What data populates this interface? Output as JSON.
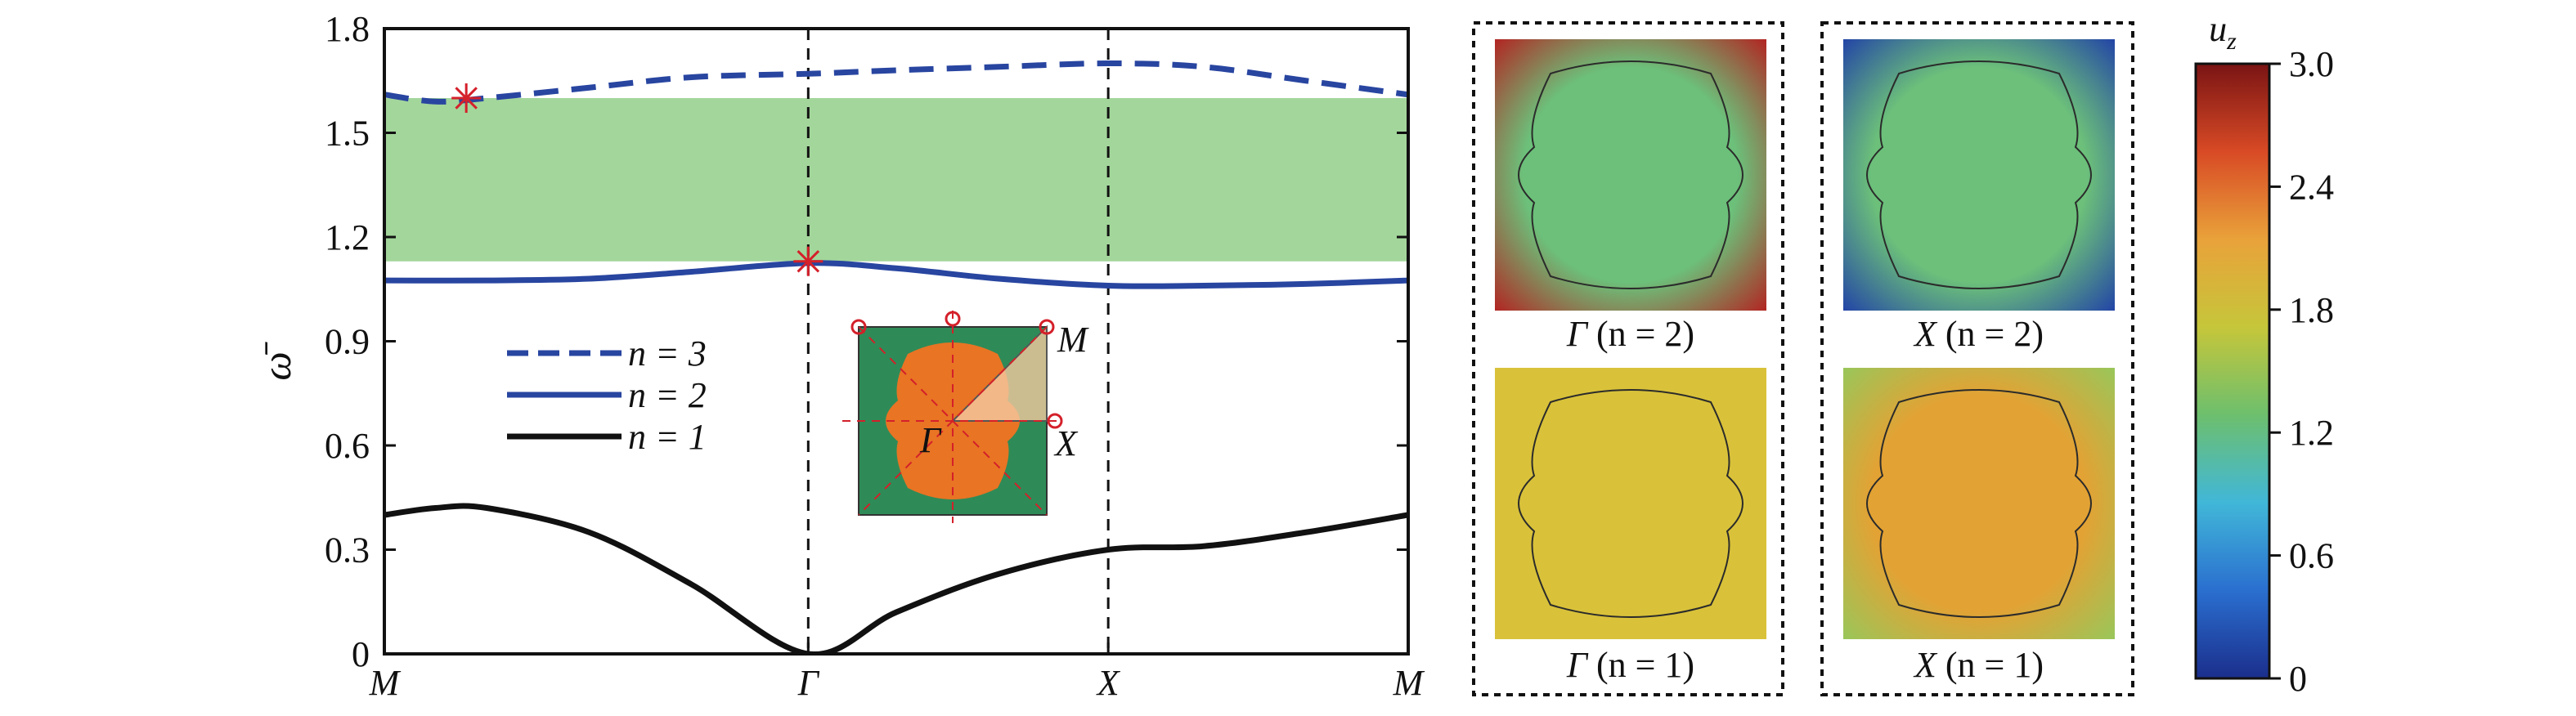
{
  "chart_data": [
    {
      "type": "line",
      "title": "",
      "xlabel": "",
      "ylabel": "ω̄",
      "x_ticks": [
        "M",
        "Γ",
        "X",
        "M"
      ],
      "x_range": [
        0,
        1
      ],
      "x_tick_positions": [
        0,
        0.414,
        0.707,
        1.0
      ],
      "ylim": [
        0,
        1.8
      ],
      "y_ticks": [
        "0",
        "0.3",
        "0.6",
        "0.9",
        "1.2",
        "1.5",
        "1.8"
      ],
      "y_tick_values": [
        0,
        0.3,
        0.6,
        0.9,
        1.2,
        1.5,
        1.8
      ],
      "grid": false,
      "legend_position": "left-middle",
      "band_gap": {
        "from": 1.13,
        "to": 1.6,
        "color": "#a3d69b"
      },
      "series": [
        {
          "name": "n = 3",
          "style": "dashed",
          "color": "#2845a0",
          "x": [
            0,
            0.05,
            0.1,
            0.2,
            0.3,
            0.414,
            0.5,
            0.6,
            0.707,
            0.8,
            0.9,
            1.0
          ],
          "y": [
            1.61,
            1.59,
            1.6,
            1.63,
            1.66,
            1.67,
            1.68,
            1.69,
            1.7,
            1.69,
            1.65,
            1.61
          ]
        },
        {
          "name": "n = 2",
          "style": "solid",
          "color": "#2845a0",
          "x": [
            0,
            0.1,
            0.2,
            0.3,
            0.414,
            0.5,
            0.6,
            0.707,
            0.8,
            0.9,
            1.0
          ],
          "y": [
            1.075,
            1.075,
            1.08,
            1.1,
            1.125,
            1.11,
            1.08,
            1.06,
            1.06,
            1.065,
            1.075
          ]
        },
        {
          "name": "n = 1",
          "style": "solid",
          "color": "#111111",
          "x": [
            0,
            0.05,
            0.1,
            0.2,
            0.3,
            0.414,
            0.5,
            0.6,
            0.707,
            0.8,
            0.9,
            1.0
          ],
          "y": [
            0.4,
            0.42,
            0.42,
            0.35,
            0.2,
            0.0,
            0.12,
            0.23,
            0.3,
            0.31,
            0.35,
            0.4
          ]
        }
      ],
      "markers": [
        {
          "x": 0.08,
          "y": 1.6,
          "symbol": "asterisk",
          "color": "#d4202a"
        },
        {
          "x": 0.414,
          "y": 1.13,
          "symbol": "asterisk",
          "color": "#d4202a"
        }
      ],
      "inset": {
        "labels": [
          "M",
          "Γ",
          "X"
        ],
        "background_color": "#2e8b57",
        "inclusion_color": "#e87424"
      }
    },
    {
      "type": "heatmap",
      "colorbar": {
        "label": "u",
        "label_subscript": "z",
        "ticks": [
          "0",
          "0.6",
          "1.2",
          "1.8",
          "2.4",
          "3.0"
        ],
        "range": [
          0,
          3.0
        ],
        "colormap": [
          "#1b2e8c",
          "#2a6fcf",
          "#41b7d8",
          "#6dbf6d",
          "#c6c63a",
          "#e9a23a",
          "#d84a25",
          "#7a1414"
        ]
      },
      "panels": [
        {
          "caption_symbol": "Γ",
          "caption_mode": " (n = 2)",
          "center_color": "#6cc07a",
          "corner_color": "#b51e1e"
        },
        {
          "caption_symbol": "X",
          "caption_mode": " (n = 2)",
          "center_color": "#6cc07a",
          "corner_color": "#1f3fa8"
        },
        {
          "caption_symbol": "Γ",
          "caption_mode": " (n = 1)",
          "center_color": "#d9c23a",
          "corner_color": "#d9c23a"
        },
        {
          "caption_symbol": "X",
          "caption_mode": " (n = 1)",
          "center_color": "#e3a234",
          "corner_color": "#96c85c"
        }
      ]
    }
  ]
}
